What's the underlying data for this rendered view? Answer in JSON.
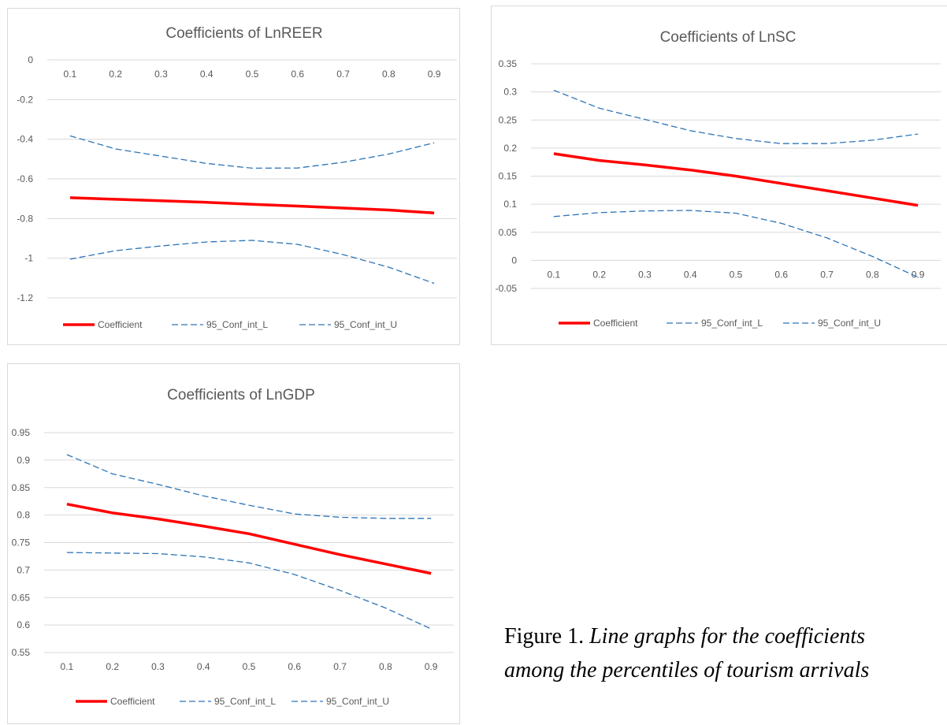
{
  "chart_data": [
    {
      "type": "line",
      "title": "Coefficients of LnREER",
      "x": [
        "0.1",
        "0.2",
        "0.3",
        "0.4",
        "0.5",
        "0.6",
        "0.7",
        "0.8",
        "0.9"
      ],
      "ylim": [
        -1.2,
        0
      ],
      "yticks": [
        "0",
        "-0.2",
        "-0.4",
        "-0.6",
        "-0.8",
        "-1",
        "-1.2"
      ],
      "ytick_values": [
        0,
        -0.2,
        -0.4,
        -0.6,
        -0.8,
        -1,
        -1.2
      ],
      "x_axis_at": 0,
      "grid": true,
      "legend_position": "bottom",
      "series": [
        {
          "name": "Coefficient",
          "values": [
            -0.695,
            -0.703,
            -0.71,
            -0.718,
            -0.728,
            -0.737,
            -0.747,
            -0.757,
            -0.772
          ]
        },
        {
          "name": "95_Conf_int_L",
          "values": [
            -0.383,
            -0.449,
            -0.485,
            -0.522,
            -0.546,
            -0.545,
            -0.516,
            -0.475,
            -0.418
          ]
        },
        {
          "name": "95_Conf_int_U",
          "values": [
            -1.005,
            -0.962,
            -0.938,
            -0.918,
            -0.91,
            -0.93,
            -0.982,
            -1.045,
            -1.127
          ]
        }
      ]
    },
    {
      "type": "line",
      "title": "Coefficients of LnSC",
      "x": [
        "0.1",
        "0.2",
        "0.3",
        "0.4",
        "0.5",
        "0.6",
        "0.7",
        "0.8",
        "0.9"
      ],
      "ylim": [
        -0.05,
        0.35
      ],
      "yticks": [
        "0.35",
        "0.3",
        "0.25",
        "0.2",
        "0.15",
        "0.1",
        "0.05",
        "0",
        "-0.05"
      ],
      "ytick_values": [
        0.35,
        0.3,
        0.25,
        0.2,
        0.15,
        0.1,
        0.05,
        0,
        -0.05
      ],
      "x_axis_at": 0,
      "grid": true,
      "legend_position": "bottom",
      "series": [
        {
          "name": "Coefficient",
          "values": [
            0.19,
            0.178,
            0.17,
            0.161,
            0.15,
            0.137,
            0.124,
            0.111,
            0.098
          ]
        },
        {
          "name": "95_Conf_int_L",
          "values": [
            0.078,
            0.085,
            0.088,
            0.089,
            0.084,
            0.066,
            0.04,
            0.007,
            -0.03
          ]
        },
        {
          "name": "95_Conf_int_U",
          "values": [
            0.303,
            0.271,
            0.251,
            0.231,
            0.217,
            0.208,
            0.208,
            0.214,
            0.225
          ]
        }
      ]
    },
    {
      "type": "line",
      "title": "Coefficients of LnGDP",
      "x": [
        "0.1",
        "0.2",
        "0.3",
        "0.4",
        "0.5",
        "0.6",
        "0.7",
        "0.8",
        "0.9"
      ],
      "ylim": [
        0.55,
        0.95
      ],
      "yticks": [
        "0.95",
        "0.9",
        "0.85",
        "0.8",
        "0.75",
        "0.7",
        "0.65",
        "0.6",
        "0.55"
      ],
      "ytick_values": [
        0.95,
        0.9,
        0.85,
        0.8,
        0.75,
        0.7,
        0.65,
        0.6,
        0.55
      ],
      "x_axis_at": 0.55,
      "grid": true,
      "legend_position": "bottom",
      "series": [
        {
          "name": "Coefficient",
          "values": [
            0.82,
            0.804,
            0.793,
            0.78,
            0.766,
            0.747,
            0.728,
            0.711,
            0.694
          ]
        },
        {
          "name": "95_Conf_int_L",
          "values": [
            0.91,
            0.875,
            0.856,
            0.835,
            0.818,
            0.802,
            0.796,
            0.794,
            0.794
          ]
        },
        {
          "name": "95_Conf_int_U",
          "values": [
            0.732,
            0.731,
            0.73,
            0.724,
            0.713,
            0.692,
            0.663,
            0.631,
            0.593
          ]
        }
      ]
    }
  ],
  "styles": {
    "coefficient_color": "#ff0000",
    "ci_color": "#2e75b6",
    "grid_color": "#d9d9d9",
    "text_color": "#595959"
  },
  "caption": {
    "label": "Figure 1.",
    "line1": "Line graphs for the coefficients",
    "line2": "among the percentiles of tourism arrivals"
  }
}
